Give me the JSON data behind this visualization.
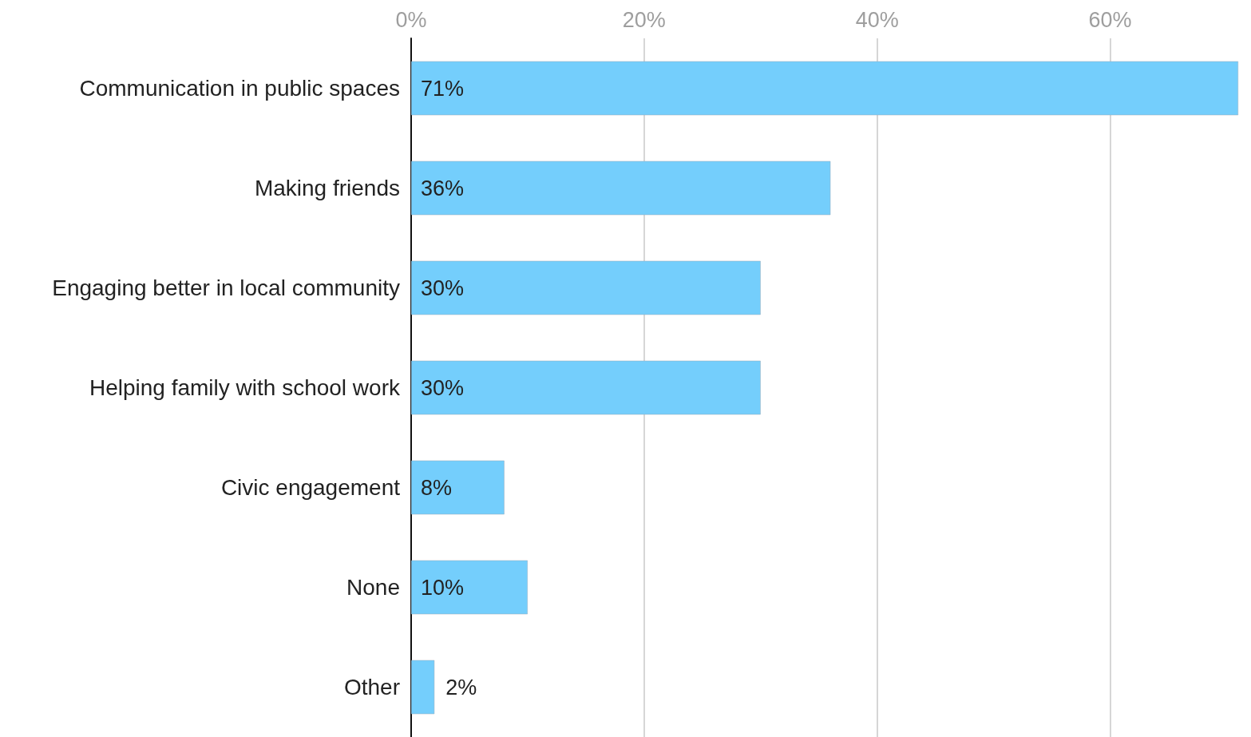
{
  "chart_data": {
    "type": "bar",
    "orientation": "horizontal",
    "categories": [
      "Communication in public spaces",
      "Making friends",
      "Engaging better in local community",
      "Helping family with school work",
      "Civic engagement",
      "None",
      "Other"
    ],
    "values": [
      71,
      36,
      30,
      30,
      8,
      10,
      2
    ],
    "value_labels": [
      "71%",
      "36%",
      "30%",
      "30%",
      "8%",
      "10%",
      "2%"
    ],
    "color": "#74cefc",
    "xlim": [
      0,
      71
    ],
    "xticks": [
      {
        "value": 0,
        "label": "0%"
      },
      {
        "value": 20,
        "label": "20%"
      },
      {
        "value": 40,
        "label": "40%"
      },
      {
        "value": 60,
        "label": "60%"
      }
    ],
    "grid": "x"
  }
}
